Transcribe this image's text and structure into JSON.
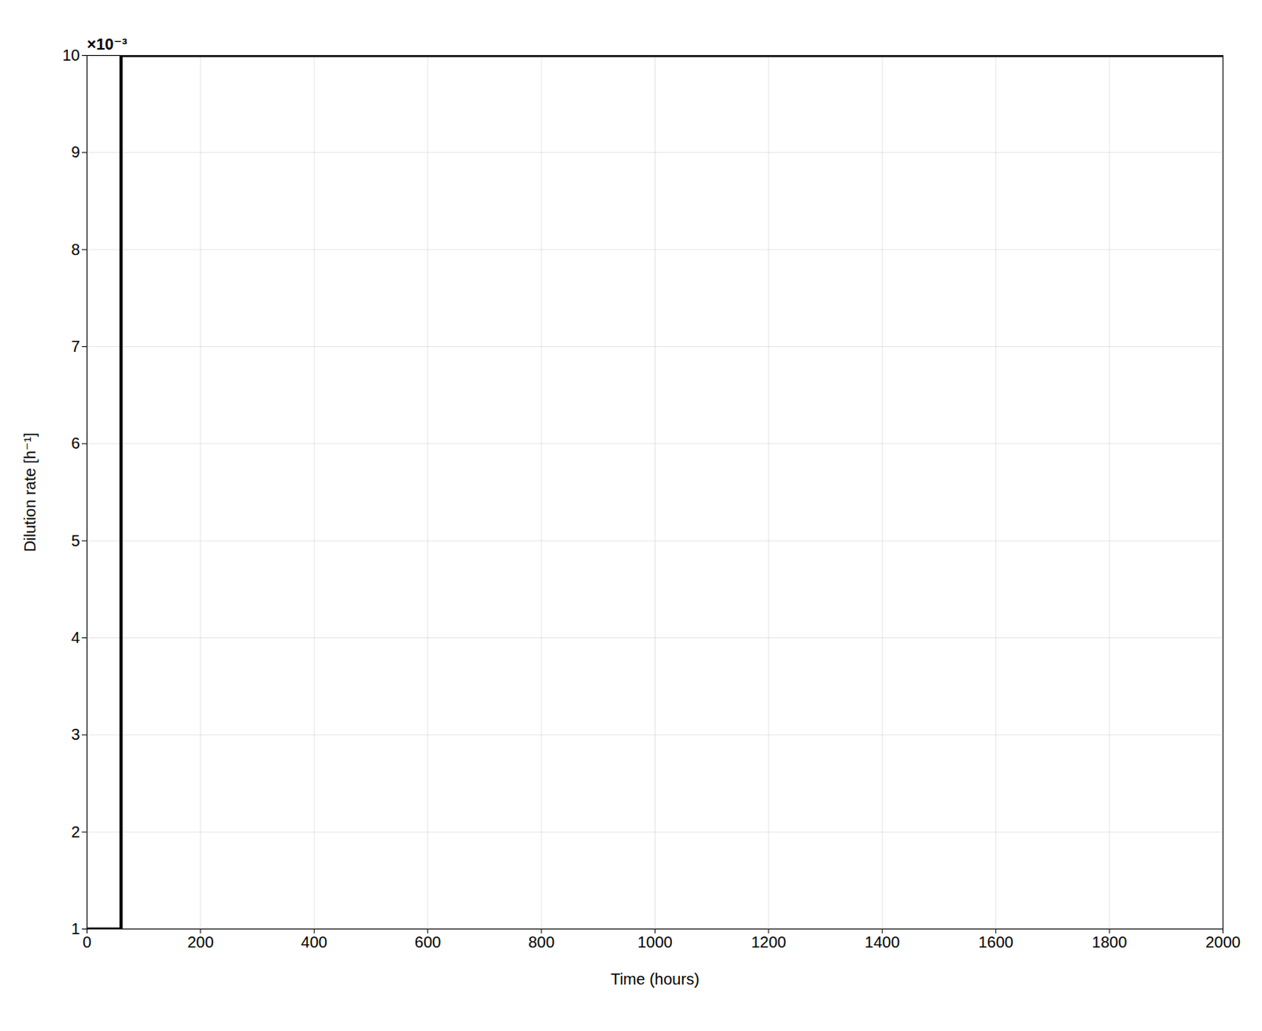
{
  "chart_data": {
    "type": "line",
    "xlabel": "Time (hours)",
    "ylabel": "Dilution rate [h⁻¹]",
    "x": [
      0,
      60,
      60,
      2000
    ],
    "values": [
      0.001,
      0.001,
      0.01,
      0.01
    ],
    "color": "#000000",
    "xlim": [
      0,
      2000
    ],
    "ylim": [
      0.001,
      0.01
    ],
    "xticks": [
      0,
      200,
      400,
      600,
      800,
      1000,
      1200,
      1400,
      1600,
      1800,
      2000
    ],
    "yticks": [
      {
        "value": 0.001,
        "label": "1"
      },
      {
        "value": 0.002,
        "label": "2"
      },
      {
        "value": 0.003,
        "label": "3"
      },
      {
        "value": 0.004,
        "label": "4"
      },
      {
        "value": 0.005,
        "label": "5"
      },
      {
        "value": 0.006,
        "label": "6"
      },
      {
        "value": 0.007,
        "label": "7"
      },
      {
        "value": 0.008,
        "label": "8"
      },
      {
        "value": 0.009,
        "label": "9"
      },
      {
        "value": 0.01,
        "label": "10"
      }
    ],
    "annotations": [
      {
        "text": "×10⁻³"
      }
    ],
    "grid": true
  }
}
